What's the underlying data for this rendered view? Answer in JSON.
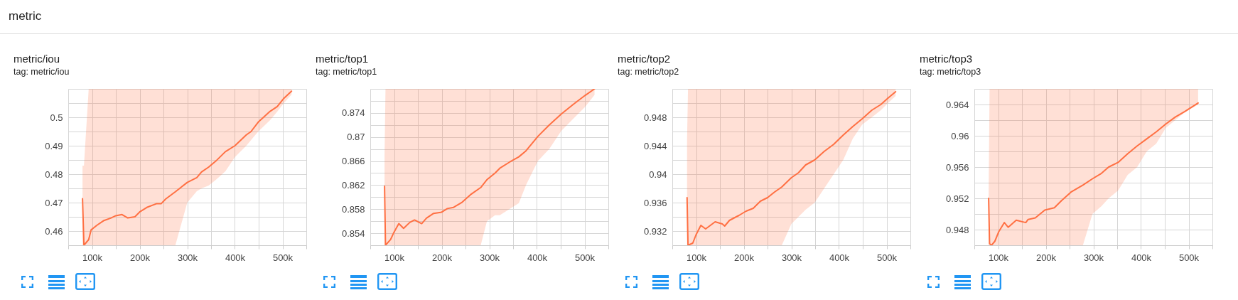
{
  "chart_data": [
    {
      "type": "other",
      "title": "metric"
    },
    {
      "type": "line",
      "title": "metric/iou",
      "subtitle": "tag: metric/iou",
      "grid": true,
      "xlim": [
        50000,
        550000
      ],
      "xticks": [
        {
          "value": 50000,
          "label": null
        },
        {
          "value": 100000,
          "label": "100k"
        },
        {
          "value": 150000,
          "label": null
        },
        {
          "value": 200000,
          "label": "200k"
        },
        {
          "value": 250000,
          "label": null
        },
        {
          "value": 300000,
          "label": "300k"
        },
        {
          "value": 350000,
          "label": null
        },
        {
          "value": 400000,
          "label": "400k"
        },
        {
          "value": 450000,
          "label": null
        },
        {
          "value": 500000,
          "label": "500k"
        },
        {
          "value": 550000,
          "label": null
        }
      ],
      "ylim": [
        0.455,
        0.51
      ],
      "yticks": [
        {
          "value": 0.455,
          "label": null
        },
        0.46,
        {
          "value": 0.465,
          "label": null
        },
        0.47,
        {
          "value": 0.475,
          "label": null
        },
        0.48,
        {
          "value": 0.485,
          "label": null
        },
        0.49,
        {
          "value": 0.495,
          "label": null
        },
        0.5,
        {
          "value": 0.505,
          "label": null
        },
        {
          "value": 0.51,
          "label": null
        }
      ],
      "x": [
        80000,
        83000,
        93000,
        98000,
        110000,
        125000,
        140000,
        150000,
        163000,
        175000,
        190000,
        200000,
        215000,
        235000,
        245000,
        255000,
        275000,
        300000,
        320000,
        330000,
        345000,
        360000,
        380000,
        400000,
        424000,
        434000,
        449000,
        474000,
        489000,
        503000,
        519000
      ],
      "series": [
        {
          "color": "#ff7043",
          "values": [
            0.4714,
            0.455,
            0.457,
            0.4604,
            0.462,
            0.4637,
            0.4646,
            0.4654,
            0.4658,
            0.4646,
            0.465,
            0.4667,
            0.4683,
            0.4696,
            0.4696,
            0.4713,
            0.4738,
            0.4771,
            0.4788,
            0.4808,
            0.4825,
            0.4846,
            0.4879,
            0.49,
            0.4938,
            0.495,
            0.4983,
            0.5021,
            0.5038,
            0.5067,
            0.5092
          ],
          "lower": [
            0.455,
            0.455,
            0.455,
            0.455,
            0.455,
            0.455,
            0.455,
            0.455,
            0.455,
            0.455,
            0.455,
            0.455,
            0.455,
            0.455,
            0.455,
            0.455,
            0.455,
            0.47,
            0.474,
            0.475,
            0.476,
            0.478,
            0.481,
            0.486,
            0.49,
            0.492,
            0.495,
            0.499,
            0.502,
            0.505,
            0.508
          ],
          "upper": [
            0.483,
            0.483,
            0.51,
            0.51,
            0.51,
            0.51,
            0.51,
            0.51,
            0.51,
            0.51,
            0.51,
            0.51,
            0.51,
            0.51,
            0.51,
            0.51,
            0.51,
            0.51,
            0.51,
            0.51,
            0.51,
            0.51,
            0.51,
            0.51,
            0.51,
            0.51,
            0.51,
            0.51,
            0.51,
            0.51,
            0.51
          ]
        }
      ]
    },
    {
      "type": "line",
      "title": "metric/top1",
      "subtitle": "tag: metric/top1",
      "grid": true,
      "xlim": [
        50000,
        550000
      ],
      "xticks": [
        {
          "value": 50000,
          "label": null
        },
        {
          "value": 100000,
          "label": "100k"
        },
        {
          "value": 150000,
          "label": null
        },
        {
          "value": 200000,
          "label": "200k"
        },
        {
          "value": 250000,
          "label": null
        },
        {
          "value": 300000,
          "label": "300k"
        },
        {
          "value": 350000,
          "label": null
        },
        {
          "value": 400000,
          "label": "400k"
        },
        {
          "value": 450000,
          "label": null
        },
        {
          "value": 500000,
          "label": "500k"
        },
        {
          "value": 550000,
          "label": null
        }
      ],
      "ylim": [
        0.852,
        0.878
      ],
      "yticks": [
        {
          "value": 0.852,
          "label": null
        },
        0.854,
        {
          "value": 0.856,
          "label": null
        },
        0.858,
        {
          "value": 0.86,
          "label": null
        },
        0.862,
        {
          "value": 0.864,
          "label": null
        },
        0.866,
        {
          "value": 0.868,
          "label": null
        },
        0.87,
        {
          "value": 0.872,
          "label": null
        },
        0.874,
        {
          "value": 0.876,
          "label": null
        },
        {
          "value": 0.878,
          "label": null
        }
      ],
      "x": [
        80000,
        82000,
        93000,
        100000,
        110000,
        120000,
        133000,
        143000,
        158000,
        168000,
        183000,
        200000,
        212000,
        225000,
        242000,
        262000,
        282000,
        295000,
        312000,
        322000,
        342000,
        362000,
        377000,
        402000,
        426000,
        451000,
        476000,
        501000,
        521000
      ],
      "series": [
        {
          "color": "#ff7043",
          "values": [
            0.8618,
            0.852,
            0.853,
            0.8542,
            0.8556,
            0.8548,
            0.8558,
            0.8562,
            0.8556,
            0.8565,
            0.8573,
            0.8575,
            0.8581,
            0.8583,
            0.8591,
            0.8605,
            0.8616,
            0.8629,
            0.864,
            0.8648,
            0.8658,
            0.8667,
            0.8677,
            0.8701,
            0.872,
            0.8738,
            0.8754,
            0.8769,
            0.878
          ],
          "lower": [
            0.852,
            0.852,
            0.852,
            0.852,
            0.852,
            0.852,
            0.852,
            0.852,
            0.852,
            0.852,
            0.852,
            0.852,
            0.852,
            0.852,
            0.852,
            0.852,
            0.852,
            0.856,
            0.857,
            0.857,
            0.858,
            0.859,
            0.862,
            0.866,
            0.868,
            0.871,
            0.873,
            0.875,
            0.877
          ],
          "upper": [
            0.867,
            0.878,
            0.878,
            0.878,
            0.878,
            0.878,
            0.878,
            0.878,
            0.878,
            0.878,
            0.878,
            0.878,
            0.878,
            0.878,
            0.878,
            0.878,
            0.878,
            0.878,
            0.878,
            0.878,
            0.878,
            0.878,
            0.878,
            0.878,
            0.878,
            0.878,
            0.878,
            0.878,
            0.878
          ]
        }
      ]
    },
    {
      "type": "line",
      "title": "metric/top2",
      "subtitle": "tag: metric/top2",
      "grid": true,
      "xlim": [
        50000,
        550000
      ],
      "xticks": [
        {
          "value": 50000,
          "label": null
        },
        {
          "value": 100000,
          "label": "100k"
        },
        {
          "value": 150000,
          "label": null
        },
        {
          "value": 200000,
          "label": "200k"
        },
        {
          "value": 250000,
          "label": null
        },
        {
          "value": 300000,
          "label": "300k"
        },
        {
          "value": 350000,
          "label": null
        },
        {
          "value": 400000,
          "label": "400k"
        },
        {
          "value": 450000,
          "label": null
        },
        {
          "value": 500000,
          "label": "500k"
        },
        {
          "value": 550000,
          "label": null
        }
      ],
      "ylim": [
        0.93,
        0.952
      ],
      "yticks": [
        {
          "value": 0.93,
          "label": null
        },
        0.932,
        {
          "value": 0.934,
          "label": null
        },
        0.936,
        {
          "value": 0.938,
          "label": null
        },
        0.94,
        {
          "value": 0.942,
          "label": null
        },
        0.944,
        {
          "value": 0.946,
          "label": null
        },
        0.948,
        {
          "value": 0.95,
          "label": null
        },
        {
          "value": 0.952,
          "label": null
        }
      ],
      "x": [
        81000,
        83000,
        93000,
        100000,
        110000,
        120000,
        140000,
        155000,
        160000,
        170000,
        190000,
        205000,
        220000,
        235000,
        250000,
        265000,
        280000,
        300000,
        315000,
        330000,
        349000,
        369000,
        389000,
        409000,
        429000,
        449000,
        469000,
        488000,
        503000,
        519000
      ],
      "series": [
        {
          "color": "#ff7043",
          "values": [
            0.9367,
            0.93,
            0.9303,
            0.9315,
            0.9328,
            0.9323,
            0.9333,
            0.933,
            0.9327,
            0.9335,
            0.9342,
            0.9348,
            0.9352,
            0.9362,
            0.9367,
            0.9375,
            0.9382,
            0.9395,
            0.9402,
            0.9413,
            0.942,
            0.9432,
            0.9442,
            0.9455,
            0.9467,
            0.9478,
            0.949,
            0.9498,
            0.9507,
            0.9516
          ],
          "lower": [
            0.93,
            0.93,
            0.93,
            0.93,
            0.93,
            0.93,
            0.93,
            0.93,
            0.93,
            0.93,
            0.93,
            0.93,
            0.93,
            0.93,
            0.93,
            0.93,
            0.93,
            0.933,
            0.934,
            0.935,
            0.936,
            0.938,
            0.94,
            0.942,
            0.945,
            0.947,
            0.948,
            0.949,
            0.95,
            0.951
          ],
          "upper": [
            0.945,
            0.952,
            0.952,
            0.952,
            0.952,
            0.952,
            0.952,
            0.952,
            0.952,
            0.952,
            0.952,
            0.952,
            0.952,
            0.952,
            0.952,
            0.952,
            0.952,
            0.952,
            0.952,
            0.952,
            0.952,
            0.952,
            0.952,
            0.952,
            0.952,
            0.952,
            0.952,
            0.952,
            0.952,
            0.952
          ]
        }
      ]
    },
    {
      "type": "line",
      "title": "metric/top3",
      "subtitle": "tag: metric/top3",
      "grid": true,
      "xlim": [
        50000,
        550000
      ],
      "xticks": [
        {
          "value": 50000,
          "label": null
        },
        {
          "value": 100000,
          "label": "100k"
        },
        {
          "value": 150000,
          "label": null
        },
        {
          "value": 200000,
          "label": "200k"
        },
        {
          "value": 250000,
          "label": null
        },
        {
          "value": 300000,
          "label": "300k"
        },
        {
          "value": 350000,
          "label": null
        },
        {
          "value": 400000,
          "label": "400k"
        },
        {
          "value": 450000,
          "label": null
        },
        {
          "value": 500000,
          "label": "500k"
        },
        {
          "value": 550000,
          "label": null
        }
      ],
      "ylim": [
        0.946,
        0.966
      ],
      "yticks": [
        {
          "value": 0.946,
          "label": null
        },
        0.948,
        {
          "value": 0.95,
          "label": null
        },
        0.952,
        {
          "value": 0.954,
          "label": null
        },
        0.956,
        {
          "value": 0.958,
          "label": null
        },
        0.96,
        {
          "value": 0.962,
          "label": null
        },
        0.964,
        {
          "value": 0.966,
          "label": null
        }
      ],
      "x": [
        80000,
        82000,
        86000,
        93000,
        101000,
        113000,
        121000,
        138000,
        158000,
        163000,
        178000,
        198000,
        218000,
        233000,
        253000,
        278000,
        298000,
        317000,
        332000,
        352000,
        372000,
        392000,
        412000,
        432000,
        452000,
        472000,
        492000,
        520000
      ],
      "series": [
        {
          "color": "#ff7043",
          "values": [
            0.952,
            0.9462,
            0.946,
            0.9465,
            0.9477,
            0.9489,
            0.9483,
            0.9492,
            0.9489,
            0.9493,
            0.9495,
            0.9505,
            0.9508,
            0.9517,
            0.9528,
            0.9537,
            0.9545,
            0.9552,
            0.956,
            0.9566,
            0.9577,
            0.9587,
            0.9596,
            0.9605,
            0.9615,
            0.9624,
            0.9631,
            0.9642
          ],
          "lower": [
            0.946,
            0.946,
            0.946,
            0.946,
            0.946,
            0.946,
            0.946,
            0.946,
            0.946,
            0.946,
            0.946,
            0.946,
            0.946,
            0.946,
            0.946,
            0.946,
            0.95,
            0.951,
            0.952,
            0.953,
            0.955,
            0.956,
            0.958,
            0.959,
            0.961,
            0.962,
            0.963,
            0.964
          ],
          "upper": [
            0.9525,
            0.966,
            0.966,
            0.966,
            0.966,
            0.966,
            0.966,
            0.966,
            0.966,
            0.966,
            0.966,
            0.966,
            0.966,
            0.966,
            0.966,
            0.966,
            0.966,
            0.966,
            0.966,
            0.966,
            0.966,
            0.966,
            0.966,
            0.966,
            0.966,
            0.966,
            0.966,
            0.966
          ]
        }
      ]
    }
  ]
}
